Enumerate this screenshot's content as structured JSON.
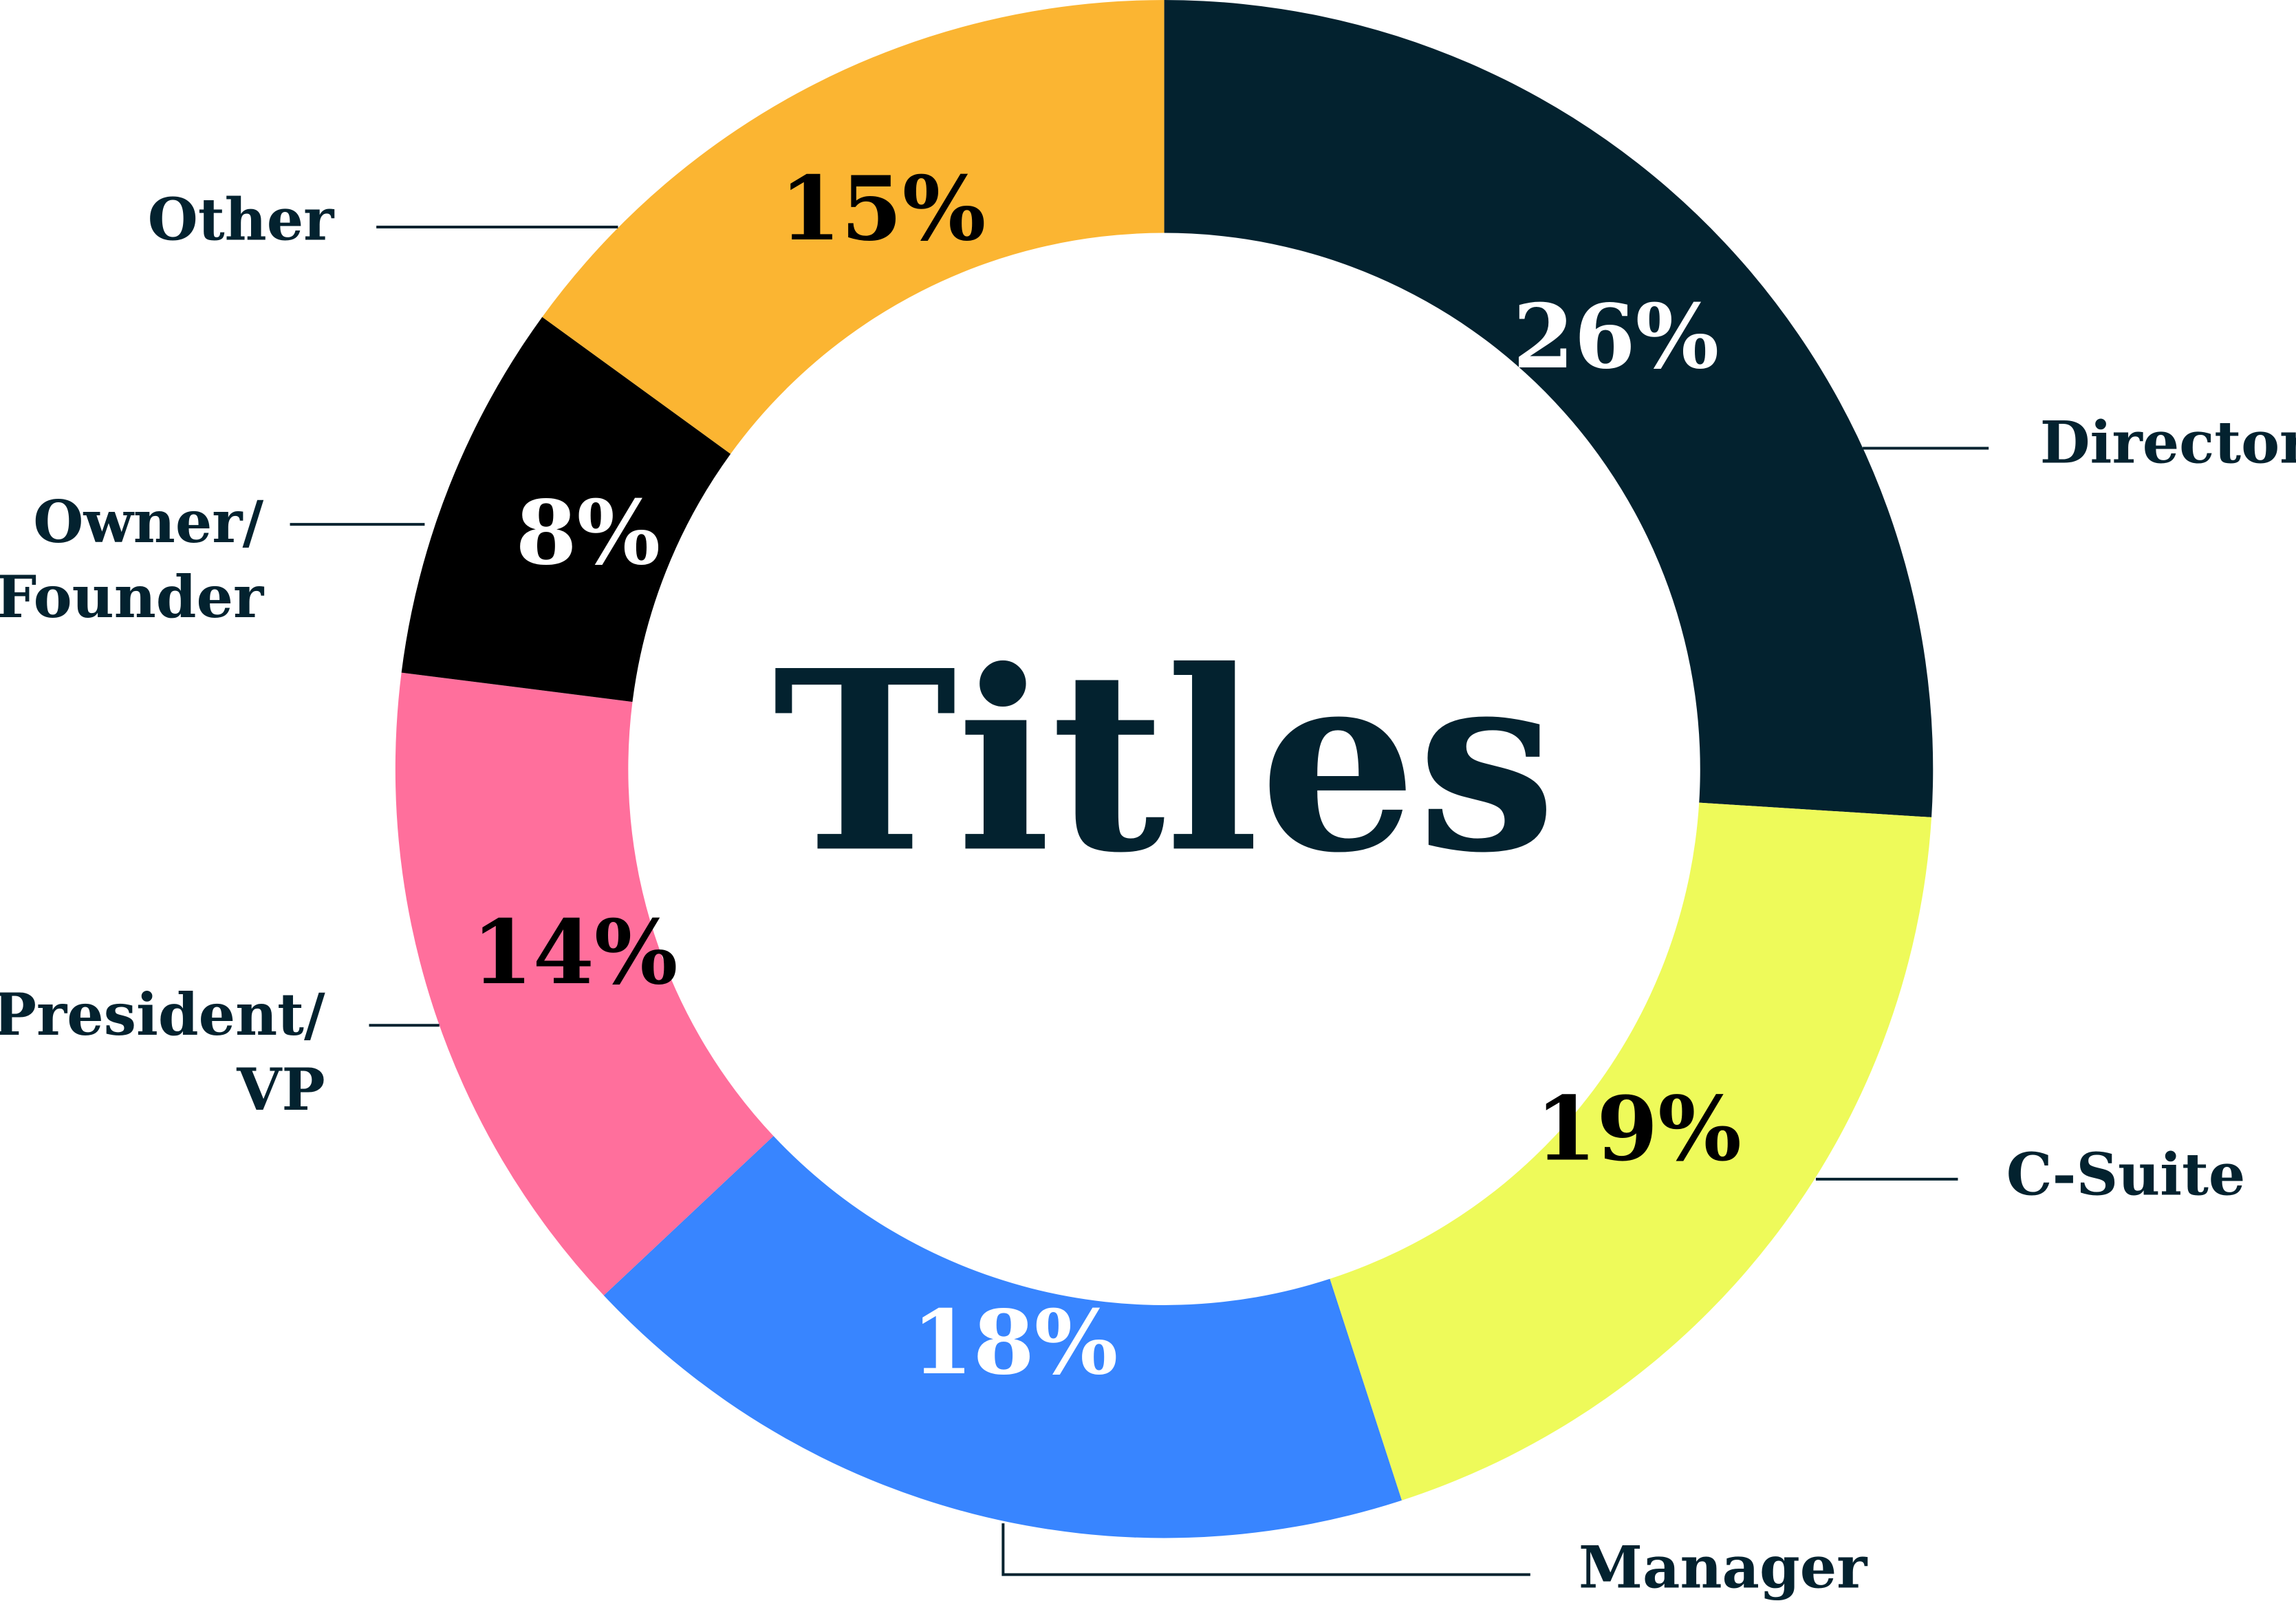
{
  "chart_data": {
    "type": "donut",
    "title": "Titles",
    "categories": [
      "Director",
      "C-Suite",
      "Manager",
      "President/\nVP",
      "Owner/\nFounder",
      "Other"
    ],
    "values": [
      26,
      19,
      18,
      14,
      8,
      15
    ],
    "value_labels": [
      "26%",
      "19%",
      "18%",
      "14%",
      "8%",
      "15%"
    ],
    "colors": [
      "#03222f",
      "#eefa5a",
      "#3885ff",
      "#ff6f9c",
      "#000000",
      "#fbb532"
    ]
  }
}
